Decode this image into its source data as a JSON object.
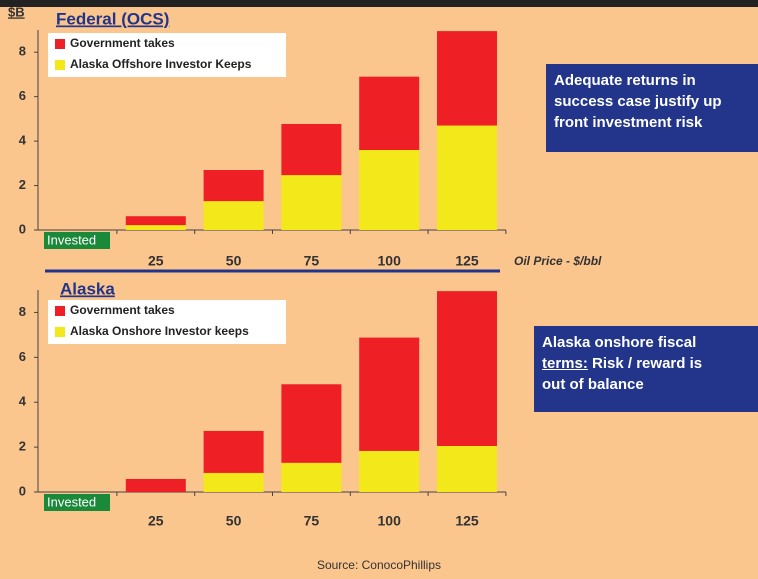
{
  "chart_data": [
    {
      "type": "bar",
      "stacked": true,
      "title": "Federal (OCS)",
      "y_label": "$B",
      "x_label": "Oil Price - $/bbl",
      "categories": [
        "Invested",
        "25",
        "50",
        "75",
        "100",
        "125"
      ],
      "series": [
        {
          "name": "Alaska Offshore Investor Keeps",
          "color": "#f2e81a",
          "values": [
            null,
            0.22,
            1.3,
            2.47,
            3.6,
            4.7
          ]
        },
        {
          "name": "Government takes",
          "color": "#ee2025",
          "values": [
            null,
            0.4,
            1.4,
            2.3,
            3.3,
            4.25
          ]
        }
      ],
      "ylim": [
        0,
        9
      ],
      "yticks": [
        0,
        2,
        4,
        6,
        8
      ],
      "callout": [
        "Adequate returns in",
        "success case justify up",
        "front investment risk"
      ]
    },
    {
      "type": "bar",
      "stacked": true,
      "title": "Alaska",
      "categories": [
        "Invested",
        "25",
        "50",
        "75",
        "100",
        "125"
      ],
      "series": [
        {
          "name": "Alaska Onshore Investor keeps",
          "color": "#f2e81a",
          "values": [
            null,
            0,
            0.85,
            1.3,
            1.83,
            2.05
          ]
        },
        {
          "name": "Government takes",
          "color": "#ee2025",
          "values": [
            null,
            0.58,
            1.87,
            3.5,
            5.05,
            6.9
          ]
        }
      ],
      "ylim": [
        0,
        9
      ],
      "yticks": [
        0,
        2,
        4,
        6,
        8
      ],
      "callout": [
        "Alaska onshore fiscal",
        "terms:",
        "Risk / reward is",
        "out of balance"
      ]
    }
  ],
  "source": "Source: ConocoPhillips"
}
